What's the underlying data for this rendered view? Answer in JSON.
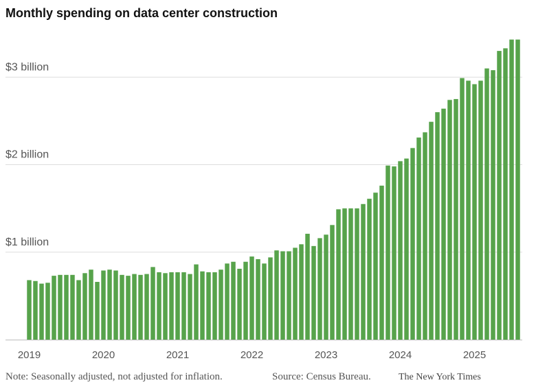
{
  "chart_data": {
    "type": "bar",
    "title": "Monthly spending on data center construction",
    "note": "Note: Seasonally adjusted, not adjusted for inflation.",
    "source": "Source: Census Bureau.",
    "credit": "The New York Times",
    "color": "#57a34b",
    "grid": true,
    "categories": [
      "2019",
      null,
      null,
      null,
      null,
      null,
      null,
      null,
      null,
      null,
      null,
      null,
      "2020",
      null,
      null,
      null,
      null,
      null,
      null,
      null,
      null,
      null,
      null,
      null,
      "2021",
      null,
      null,
      null,
      null,
      null,
      null,
      null,
      null,
      null,
      null,
      null,
      "2022",
      null,
      null,
      null,
      null,
      null,
      null,
      null,
      null,
      null,
      null,
      null,
      "2023",
      null,
      null,
      null,
      null,
      null,
      null,
      null,
      null,
      null,
      null,
      null,
      "2024",
      null,
      null,
      null,
      null,
      null,
      null,
      null,
      null,
      null,
      null,
      null,
      "2025",
      null,
      null,
      null,
      null,
      null,
      null,
      null
    ],
    "values": [
      0.68,
      0.67,
      0.64,
      0.65,
      0.73,
      0.74,
      0.74,
      0.74,
      0.68,
      0.76,
      0.8,
      0.66,
      0.79,
      0.8,
      0.79,
      0.74,
      0.73,
      0.75,
      0.74,
      0.75,
      0.83,
      0.77,
      0.76,
      0.77,
      0.77,
      0.77,
      0.75,
      0.86,
      0.78,
      0.77,
      0.77,
      0.8,
      0.87,
      0.89,
      0.81,
      0.89,
      0.95,
      0.92,
      0.87,
      0.94,
      1.02,
      1.01,
      1.01,
      1.05,
      1.09,
      1.21,
      1.07,
      1.16,
      1.2,
      1.31,
      1.49,
      1.5,
      1.5,
      1.5,
      1.55,
      1.61,
      1.68,
      1.76,
      1.99,
      1.98,
      2.04,
      2.07,
      2.19,
      2.31,
      2.37,
      2.49,
      2.6,
      2.64,
      2.74,
      2.75,
      2.99,
      2.96,
      2.92,
      2.96,
      3.1,
      3.08,
      3.3,
      3.33,
      3.43,
      3.43
    ],
    "ylim": [
      0,
      3.45
    ],
    "yticks": [
      {
        "value": 1,
        "label": "$1 billion"
      },
      {
        "value": 2,
        "label": "$2 billion"
      },
      {
        "value": 3,
        "label": "$3 billion"
      }
    ]
  }
}
